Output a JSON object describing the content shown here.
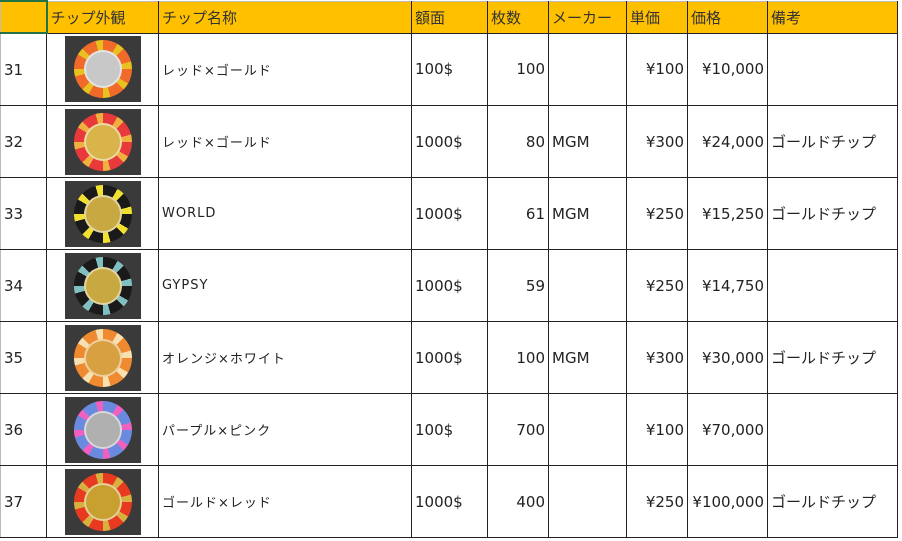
{
  "header": [
    "",
    "チップ外観",
    "チップ名称",
    "額面",
    "枚数",
    "メーカー",
    "単価",
    "価格",
    "備考"
  ],
  "rows": [
    {
      "no": "31",
      "name": "レッド×ゴールド",
      "face": "100$",
      "count": "100",
      "maker": "",
      "unit": "¥100",
      "price": "¥10,000",
      "note": "",
      "chip": {
        "edge": "#f06a2a",
        "stripe": "#e8c020",
        "inlay": "#c8c8c8"
      }
    },
    {
      "no": "32",
      "name": "レッド×ゴールド",
      "face": "1000$",
      "count": "80",
      "maker": "MGM",
      "unit": "¥300",
      "price": "¥24,000",
      "note": "ゴールドチップ",
      "chip": {
        "edge": "#e83a3a",
        "stripe": "#f0b040",
        "inlay": "#d9b44a"
      }
    },
    {
      "no": "33",
      "name": "WORLD",
      "face": "1000$",
      "count": "61",
      "maker": "MGM",
      "unit": "¥250",
      "price": "¥15,250",
      "note": "ゴールドチップ",
      "chip": {
        "edge": "#1a1a1a",
        "stripe": "#f0e030",
        "inlay": "#c8a840"
      }
    },
    {
      "no": "34",
      "name": "GYPSY",
      "face": "1000$",
      "count": "59",
      "maker": "",
      "unit": "¥250",
      "price": "¥14,750",
      "note": "",
      "chip": {
        "edge": "#1a1a1a",
        "stripe": "#80c0c0",
        "inlay": "#c8a840"
      }
    },
    {
      "no": "35",
      "name": "オレンジ×ホワイト",
      "face": "1000$",
      "count": "100",
      "maker": "MGM",
      "unit": "¥300",
      "price": "¥30,000",
      "note": "ゴールドチップ",
      "chip": {
        "edge": "#f08a30",
        "stripe": "#f8e0b0",
        "inlay": "#d8a040"
      }
    },
    {
      "no": "36",
      "name": "パープル×ピンク",
      "face": "100$",
      "count": "700",
      "maker": "",
      "unit": "¥100",
      "price": "¥70,000",
      "note": "",
      "chip": {
        "edge": "#6a8ae0",
        "stripe": "#f060c0",
        "inlay": "#b0b0b0"
      }
    },
    {
      "no": "37",
      "name": "ゴールド×レッド",
      "face": "1000$",
      "count": "400",
      "maker": "",
      "unit": "¥250",
      "price": "¥100,000",
      "note": "ゴールドチップ",
      "chip": {
        "edge": "#e83a20",
        "stripe": "#d8b040",
        "inlay": "#c8a030"
      }
    }
  ]
}
